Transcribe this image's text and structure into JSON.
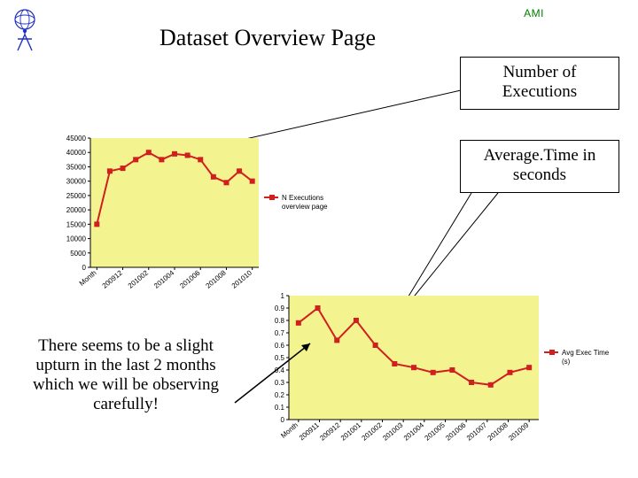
{
  "labels": {
    "ami": "AMI",
    "title": "Dataset Overview Page",
    "callout1": "Number of Executions",
    "callout2": "Average.Time in seconds",
    "note": "There seems to be a slight upturn in the last 2 months which we will be observing carefully!"
  },
  "chart1": {
    "type": "line",
    "plot_bg": "#f3f38f",
    "line_color": "#d01f1f",
    "axis_color": "#000000",
    "line_width": 2,
    "marker": "square",
    "marker_size": 3,
    "legend": "N Executions overview page",
    "y": {
      "min": 0,
      "max": 45000,
      "step": 5000,
      "labels": [
        "0",
        "5000",
        "10000",
        "15000",
        "20000",
        "25000",
        "30000",
        "35000",
        "40000",
        "45000"
      ]
    },
    "x_labels": [
      "Month",
      "200912",
      "201002",
      "201004",
      "201006",
      "201008",
      "201010"
    ],
    "series": [
      15000,
      33500,
      34500,
      37500,
      40000,
      37500,
      39500,
      39000,
      37500,
      31500,
      29500,
      33500,
      30000
    ]
  },
  "chart2": {
    "type": "line",
    "plot_bg": "#f3f38f",
    "line_color": "#d01f1f",
    "axis_color": "#000000",
    "line_width": 2,
    "marker": "square",
    "marker_size": 3,
    "legend": "Avg Exec Time (s)",
    "y": {
      "min": 0,
      "max": 1.0,
      "step": 0.1,
      "labels": [
        "0",
        "0.1",
        "0.2",
        "0.3",
        "0.4",
        "0.5",
        "0.6",
        "0.7",
        "0.8",
        "0.9",
        "1"
      ]
    },
    "x_labels": [
      "Month",
      "200911",
      "200912",
      "201001",
      "201002",
      "201003",
      "201004",
      "201005",
      "201006",
      "201007",
      "201008",
      "201009"
    ],
    "series": [
      0.78,
      0.9,
      0.64,
      0.8,
      0.6,
      0.45,
      0.42,
      0.38,
      0.4,
      0.3,
      0.28,
      0.38,
      0.42
    ]
  }
}
